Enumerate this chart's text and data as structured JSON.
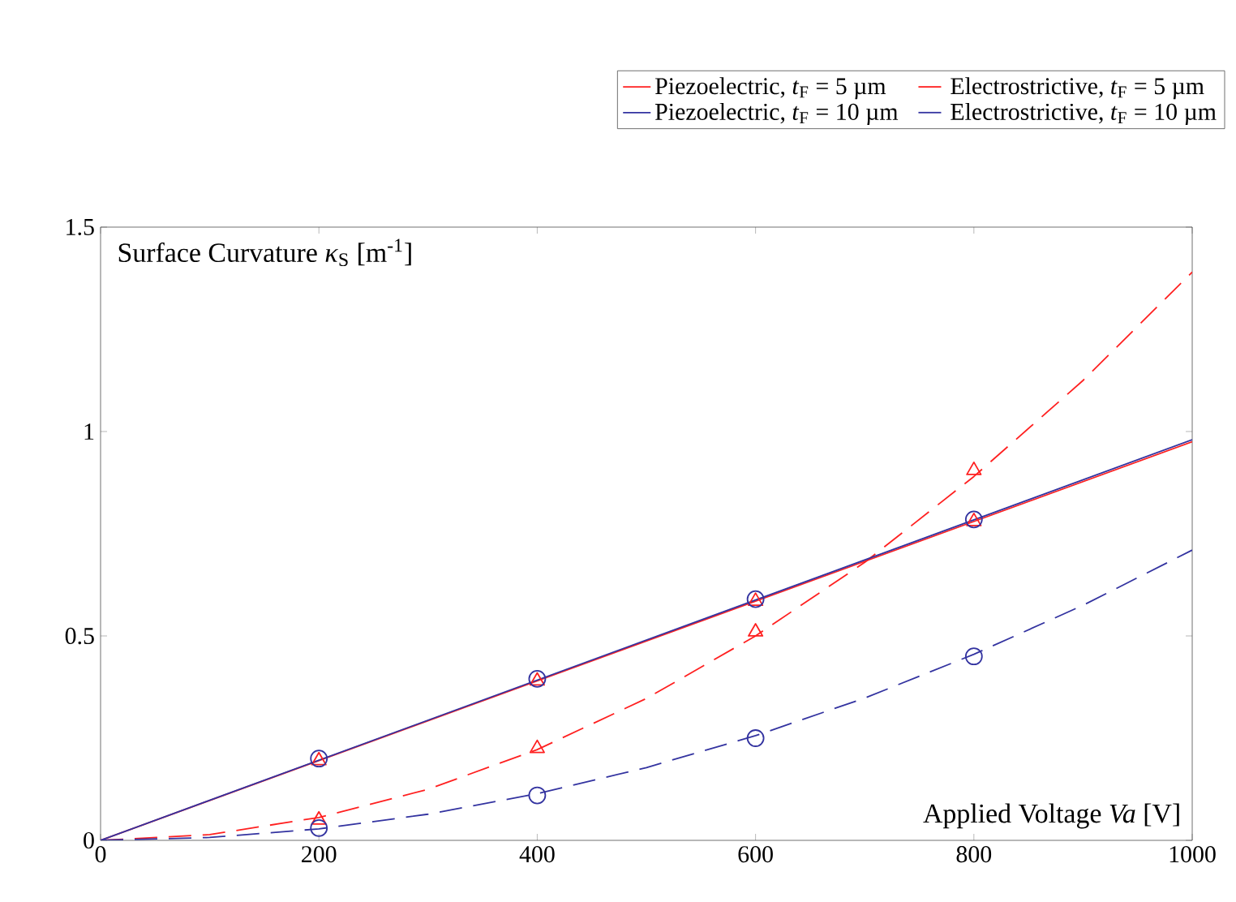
{
  "chart_data": {
    "type": "line",
    "xlabel": "Applied Voltage *Va* [V]",
    "ylabel": "Surface Curvature *κ*$_{S}$ [m$^{-1}$]",
    "xlim": [
      0,
      1000
    ],
    "ylim": [
      0,
      1.5
    ],
    "xticks": [
      0,
      200,
      400,
      600,
      800,
      1000
    ],
    "yticks": [
      0,
      0.5,
      1,
      1.5
    ],
    "grid": false,
    "legend": "top",
    "series": [
      {
        "name": "Piezoelectric, *t*$_{F}$ = 5 µm",
        "color": "#ff2020",
        "line_style": "solid",
        "x": [
          0,
          1000
        ],
        "values": [
          0,
          0.975
        ]
      },
      {
        "name": "Electrostrictive, *t*$_{F}$ = 5 µm",
        "color": "#ff2020",
        "line_style": "dashed",
        "x": [
          0,
          100,
          200,
          300,
          400,
          500,
          600,
          700,
          800,
          900,
          1000
        ],
        "values": [
          0,
          0.014,
          0.056,
          0.125,
          0.222,
          0.347,
          0.5,
          0.68,
          0.89,
          1.125,
          1.39
        ]
      },
      {
        "name": "Piezoelectric, *t*$_{F}$ = 10 µm",
        "color": "#3333a0",
        "line_style": "solid",
        "x": [
          0,
          1000
        ],
        "values": [
          0,
          0.98
        ]
      },
      {
        "name": "Electrostrictive, *t*$_{F}$ = 10 µm",
        "color": "#3333a0",
        "line_style": "dashed",
        "x": [
          0,
          100,
          200,
          300,
          400,
          500,
          600,
          700,
          800,
          900,
          1000
        ],
        "values": [
          0,
          0.007,
          0.028,
          0.064,
          0.114,
          0.178,
          0.256,
          0.348,
          0.455,
          0.575,
          0.71
        ]
      },
      {
        "type": "scatter",
        "marker": "triangle",
        "color": "#ff2020",
        "x": [
          200,
          400,
          600,
          800
        ],
        "values": [
          0.195,
          0.39,
          0.585,
          0.78
        ]
      },
      {
        "type": "scatter",
        "marker": "triangle",
        "color": "#ff2020",
        "x": [
          200,
          400,
          600,
          800
        ],
        "values": [
          0.05,
          0.225,
          0.51,
          0.905
        ]
      },
      {
        "type": "scatter",
        "marker": "circle",
        "color": "#3333a0",
        "x": [
          200,
          400,
          600,
          800
        ],
        "values": [
          0.2,
          0.395,
          0.59,
          0.785
        ]
      },
      {
        "type": "scatter",
        "marker": "circle",
        "color": "#3333a0",
        "x": [
          200,
          400,
          600,
          800
        ],
        "values": [
          0.03,
          0.11,
          0.25,
          0.45
        ]
      }
    ]
  }
}
